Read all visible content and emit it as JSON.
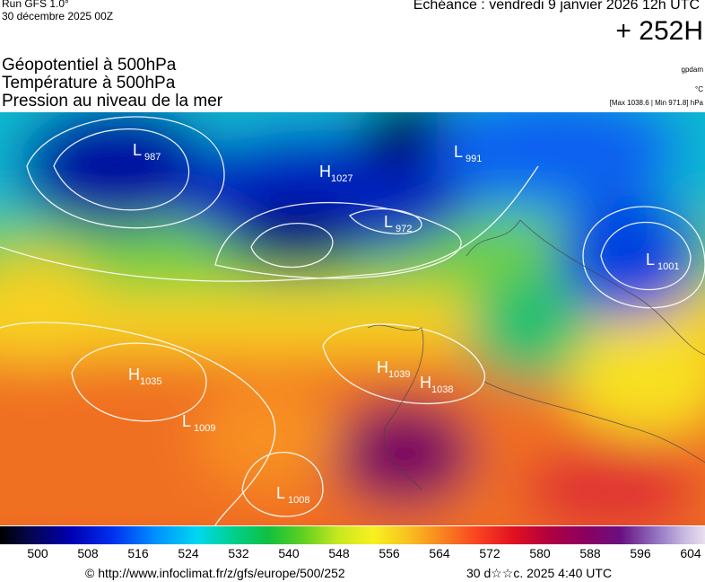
{
  "header": {
    "run": "Run GFS 1.0°",
    "run_date": "30 décembre 2025 00Z",
    "forecast": "Echéance : vendredi 9 janvier 2026 12h UTC",
    "lead": "+ 252H"
  },
  "fields": [
    "Géopotentiel à 500hPa",
    "Température à 500hPa",
    "Pression au niveau de la mer"
  ],
  "units": {
    "geopotential": "gpdam",
    "temperature": "°C",
    "pressure": "[Max 1038.6 | Min 971.8] hPa"
  },
  "centers": [
    {
      "kind": "L",
      "value": "987"
    },
    {
      "kind": "H",
      "value": "1027"
    },
    {
      "kind": "L",
      "value": "991"
    },
    {
      "kind": "L",
      "value": "972"
    },
    {
      "kind": "L",
      "value": "1001"
    },
    {
      "kind": "H",
      "value": "1035"
    },
    {
      "kind": "H",
      "value": "1039"
    },
    {
      "kind": "H",
      "value": "1038"
    },
    {
      "kind": "L",
      "value": "1009"
    },
    {
      "kind": "L",
      "value": "1008"
    }
  ],
  "scale": {
    "ticks": [
      500,
      508,
      516,
      524,
      532,
      540,
      548,
      556,
      564,
      572,
      580,
      588,
      596,
      604
    ],
    "lim": [
      500,
      604
    ]
  },
  "footer": {
    "source": "© http://www.infoclimat.fr/z/gfs/europe/500/252",
    "time": "30 d☆☆c. 2025  4:40 UTC"
  }
}
